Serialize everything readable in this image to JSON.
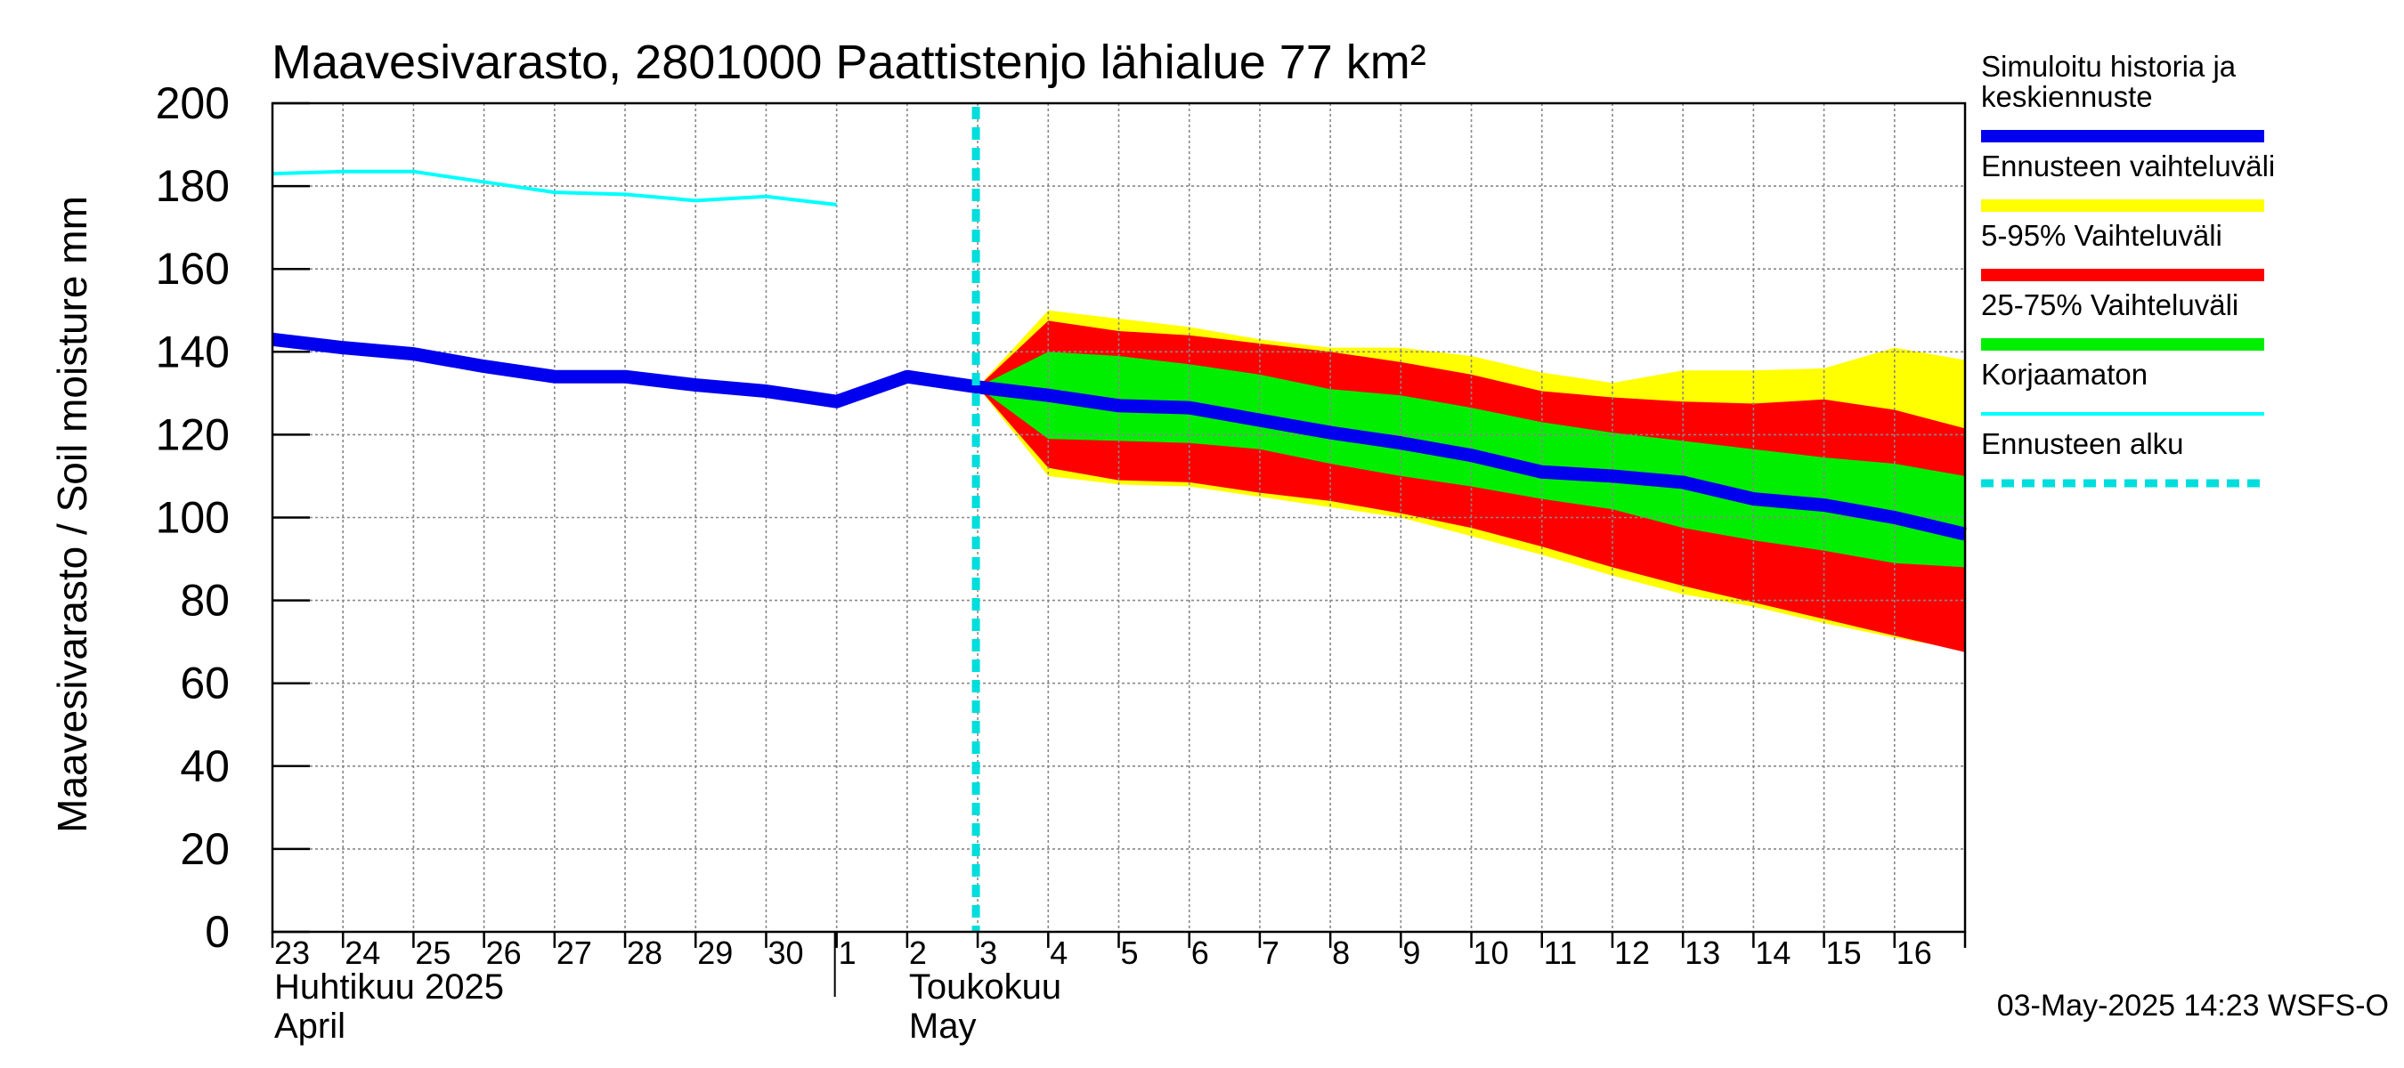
{
  "chart_data": {
    "type": "area",
    "title": "Maavesivarasto, 2801000 Paattistenjo lähialue 77 km²",
    "ylabel": "Maavesivarasto / Soil moisture   mm",
    "ylim": [
      0,
      200
    ],
    "yticks": [
      0,
      20,
      40,
      60,
      80,
      100,
      120,
      140,
      160,
      180,
      200
    ],
    "x_day_range": [
      0,
      24
    ],
    "day_labels": [
      {
        "d": 0,
        "label": "23"
      },
      {
        "d": 1,
        "label": "24"
      },
      {
        "d": 2,
        "label": "25"
      },
      {
        "d": 3,
        "label": "26"
      },
      {
        "d": 4,
        "label": "27"
      },
      {
        "d": 5,
        "label": "28"
      },
      {
        "d": 6,
        "label": "29"
      },
      {
        "d": 7,
        "label": "30"
      },
      {
        "d": 8,
        "label": "1"
      },
      {
        "d": 9,
        "label": "2"
      },
      {
        "d": 10,
        "label": "3"
      },
      {
        "d": 11,
        "label": "4"
      },
      {
        "d": 12,
        "label": "5"
      },
      {
        "d": 13,
        "label": "6"
      },
      {
        "d": 14,
        "label": "7"
      },
      {
        "d": 15,
        "label": "8"
      },
      {
        "d": 16,
        "label": "9"
      },
      {
        "d": 17,
        "label": "10"
      },
      {
        "d": 18,
        "label": "11"
      },
      {
        "d": 19,
        "label": "12"
      },
      {
        "d": 20,
        "label": "13"
      },
      {
        "d": 21,
        "label": "14"
      },
      {
        "d": 22,
        "label": "15"
      },
      {
        "d": 23,
        "label": "16"
      }
    ],
    "month_labels": [
      {
        "d": 0,
        "fi": "Huhtikuu  2025",
        "en": "April"
      },
      {
        "d": 9,
        "fi": "Toukokuu",
        "en": "May"
      }
    ],
    "month_divider_day": 8,
    "forecast_start_day": 10,
    "timestamp": "03-May-2025 14:23 WSFS-O",
    "series": {
      "korjaamaton": {
        "x": [
          0,
          1,
          2,
          3,
          4,
          5,
          6,
          7,
          8
        ],
        "y": [
          183,
          183.5,
          183.5,
          181,
          178.5,
          178,
          176.5,
          177.5,
          175.5
        ]
      },
      "simulated": {
        "x": [
          0,
          1,
          2,
          3,
          4,
          5,
          6,
          7,
          8,
          9,
          10,
          11,
          12,
          13,
          14,
          15,
          16,
          17,
          18,
          19,
          20,
          21,
          22,
          23,
          24
        ],
        "y": [
          143,
          141,
          139.5,
          136.5,
          134,
          134,
          132,
          130.5,
          128,
          134,
          131.5,
          129.5,
          127,
          126.5,
          123.5,
          120.5,
          118,
          115,
          111,
          110,
          108.5,
          104.5,
          103,
          100,
          96
        ]
      },
      "band_x": [
        10,
        11,
        12,
        13,
        14,
        15,
        16,
        17,
        18,
        19,
        20,
        21,
        22,
        23,
        24
      ],
      "range_full": {
        "upper": [
          131.5,
          150,
          148,
          146,
          143,
          141,
          141,
          139,
          135,
          132.5,
          135.5,
          135.5,
          136,
          141,
          138
        ],
        "lower": [
          131.5,
          110,
          108,
          107.5,
          105,
          102.5,
          100,
          95.5,
          91,
          86,
          81.5,
          78.5,
          74.5,
          71,
          68
        ]
      },
      "p5_95": {
        "upper": [
          131.5,
          147.5,
          145,
          144,
          142,
          140,
          137.5,
          134.5,
          130.5,
          129,
          128,
          127.5,
          128.5,
          126,
          121.5
        ],
        "lower": [
          131.5,
          112,
          109,
          108.5,
          106,
          104,
          101,
          97.5,
          93,
          88,
          83.5,
          79.5,
          75.5,
          71.5,
          67.5
        ]
      },
      "p25_75": {
        "upper": [
          131.5,
          140,
          139,
          137,
          134.5,
          131,
          129.5,
          126.5,
          123,
          120.5,
          118.5,
          116.5,
          114.5,
          113,
          110
        ]
      }
    },
    "p25_75_lower_ref": [
      131.5,
      119,
      118.5,
      118,
      116.5,
      113,
      110,
      107.5,
      104.5,
      102,
      97.5,
      94.5,
      92,
      89,
      88
    ],
    "colors": {
      "simulated": "#0000ee",
      "range_full": "#ffff00",
      "p5_95": "#ff0000",
      "p25_75": "#00ee00",
      "korjaamaton": "#00ffff",
      "forecast_start": "#00dddd",
      "grid": "#888888"
    },
    "legend": [
      {
        "key": "simulated",
        "lines": [
          "Simuloitu historia ja",
          "keskiennuste"
        ]
      },
      {
        "key": "range_full",
        "lines": [
          "Ennusteen vaihteluväli"
        ]
      },
      {
        "key": "p5_95",
        "lines": [
          "5-95% Vaihteluväli"
        ]
      },
      {
        "key": "p25_75",
        "lines": [
          "25-75% Vaihteluväli"
        ]
      },
      {
        "key": "korjaamaton",
        "lines": [
          "Korjaamaton"
        ]
      },
      {
        "key": "forecast_start",
        "lines": [
          "Ennusteen alku"
        ]
      }
    ]
  }
}
